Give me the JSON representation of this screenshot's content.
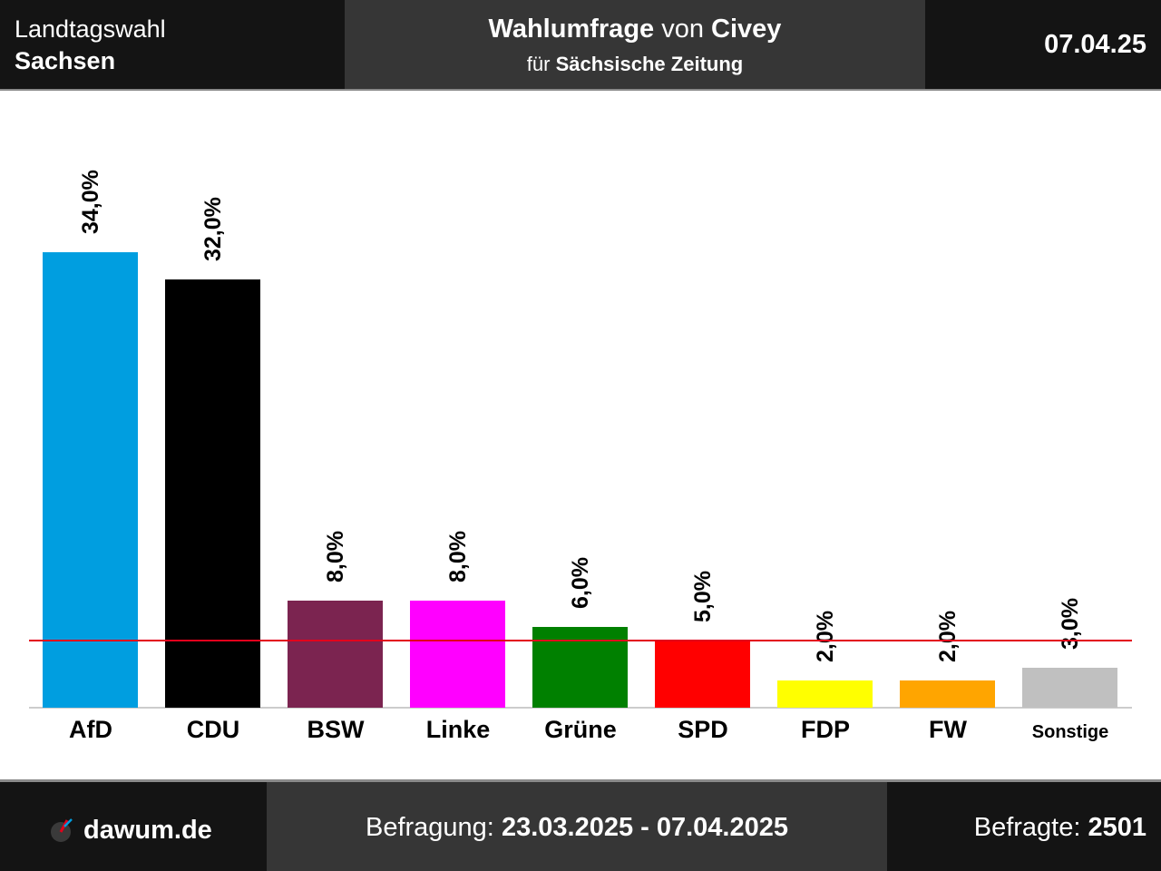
{
  "header": {
    "election_type": "Landtagswahl",
    "region": "Sachsen",
    "title_bold1": "Wahlumfrage",
    "title_mid": "von",
    "title_bold2": "Civey",
    "subtitle_pre": "für",
    "subtitle_bold": "Sächsische Zeitung",
    "date": "07.04.25"
  },
  "footer": {
    "brand": "dawum.de",
    "period_label": "Befragung:",
    "period": "23.03.2025 - 07.04.2025",
    "respondents_label": "Befragte:",
    "respondents": "2501"
  },
  "chart_data": {
    "type": "bar",
    "categories": [
      "AfD",
      "CDU",
      "BSW",
      "Linke",
      "Grüne",
      "SPD",
      "FDP",
      "FW",
      "Sonstige"
    ],
    "values": [
      34.0,
      32.0,
      8.0,
      8.0,
      6.0,
      5.0,
      2.0,
      2.0,
      3.0
    ],
    "value_labels": [
      "34,0%",
      "32,0%",
      "8,0%",
      "8,0%",
      "6,0%",
      "5,0%",
      "2,0%",
      "2,0%",
      "3,0%"
    ],
    "colors": [
      "#009ee0",
      "#000000",
      "#7b2450",
      "#ff00ff",
      "#008000",
      "#ff0000",
      "#ffff00",
      "#ffa500",
      "#c0c0c0"
    ],
    "threshold": 5.0,
    "threshold_color": "#e3001b",
    "ylim": [
      0,
      34.0
    ]
  }
}
